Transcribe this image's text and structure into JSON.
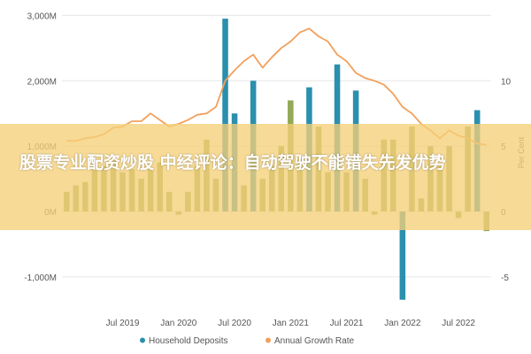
{
  "overlay": {
    "headline": "股票专业配资炒股 中经评论：自动驾驶不能错失先发优势"
  },
  "chart_data": {
    "type": "bar",
    "x": [
      "2019-01",
      "2019-02",
      "2019-03",
      "2019-04",
      "2019-05",
      "2019-06",
      "2019-07",
      "2019-08",
      "2019-09",
      "2019-10",
      "2019-11",
      "2019-12",
      "2020-01",
      "2020-02",
      "2020-03",
      "2020-04",
      "2020-05",
      "2020-06",
      "2020-07",
      "2020-08",
      "2020-09",
      "2020-10",
      "2020-11",
      "2020-12",
      "2021-01",
      "2021-02",
      "2021-03",
      "2021-04",
      "2021-05",
      "2021-06",
      "2021-07",
      "2021-08",
      "2021-09",
      "2021-10",
      "2021-11",
      "2021-12",
      "2022-01",
      "2022-02",
      "2022-03",
      "2022-04",
      "2022-05",
      "2022-06",
      "2022-07",
      "2022-08",
      "2022-09",
      "2022-10"
    ],
    "xticks": [
      {
        "at": "2019-07",
        "label": "Jul 2019"
      },
      {
        "at": "2020-01",
        "label": "Jan 2020"
      },
      {
        "at": "2020-07",
        "label": "Jul 2020"
      },
      {
        "at": "2021-01",
        "label": "Jan 2021"
      },
      {
        "at": "2021-07",
        "label": "Jul 2021"
      },
      {
        "at": "2022-01",
        "label": "Jan 2022"
      },
      {
        "at": "2022-07",
        "label": "Jul 2022"
      }
    ],
    "y_left": {
      "ticks": [
        -1000,
        0,
        1000,
        2000,
        3000
      ],
      "labels": [
        "-1,000M",
        "0M",
        "1,000M",
        "2,000M",
        "3,000M"
      ],
      "range": [
        -1300,
        3100
      ]
    },
    "y_right": {
      "ticks": [
        -5,
        0,
        5,
        10
      ],
      "labels": [
        "-5",
        "0",
        "5",
        "10"
      ],
      "label": "Per Cent",
      "range": [
        -6.5,
        15.5
      ]
    },
    "series": [
      {
        "name": "Household Deposits",
        "kind": "bar",
        "axis": "left",
        "color": "#2B8FAE",
        "highlight_color": "#93A957",
        "values": [
          300,
          400,
          450,
          750,
          700,
          800,
          600,
          650,
          500,
          650,
          750,
          300,
          -50,
          300,
          700,
          1100,
          500,
          2950,
          1500,
          400,
          2000,
          500,
          700,
          1000,
          1700,
          800,
          1900,
          1300,
          600,
          2250,
          600,
          1850,
          500,
          -50,
          1100,
          1100,
          -1350,
          1300,
          200,
          1000,
          700,
          1000,
          -100,
          1300,
          1550,
          -300
        ],
        "highlighted": [
          true,
          true,
          true,
          true,
          true,
          true,
          true,
          true,
          true,
          true,
          true,
          true,
          true,
          true,
          true,
          true,
          true,
          false,
          false,
          true,
          false,
          true,
          true,
          true,
          true,
          true,
          false,
          true,
          true,
          false,
          true,
          false,
          true,
          true,
          true,
          true,
          false,
          true,
          true,
          true,
          true,
          true,
          true,
          true,
          false,
          true
        ]
      },
      {
        "name": "Annual Growth Rate",
        "kind": "line",
        "axis": "right",
        "color": "#F2A05C",
        "values": [
          5.4,
          5.4,
          5.6,
          5.7,
          5.9,
          6.4,
          6.5,
          6.9,
          6.9,
          7.5,
          7.0,
          6.5,
          6.7,
          7.0,
          7.4,
          7.5,
          8.0,
          10.0,
          10.8,
          11.5,
          12.0,
          11.0,
          11.8,
          12.5,
          13.0,
          13.7,
          14.0,
          13.4,
          13.0,
          12.0,
          11.5,
          10.6,
          10.2,
          10.0,
          9.7,
          9.0,
          8.0,
          7.5,
          6.7,
          6.2,
          5.6,
          6.2,
          5.8,
          5.6,
          5.2,
          5.1
        ]
      }
    ],
    "legend": {
      "position": "bottom"
    }
  }
}
